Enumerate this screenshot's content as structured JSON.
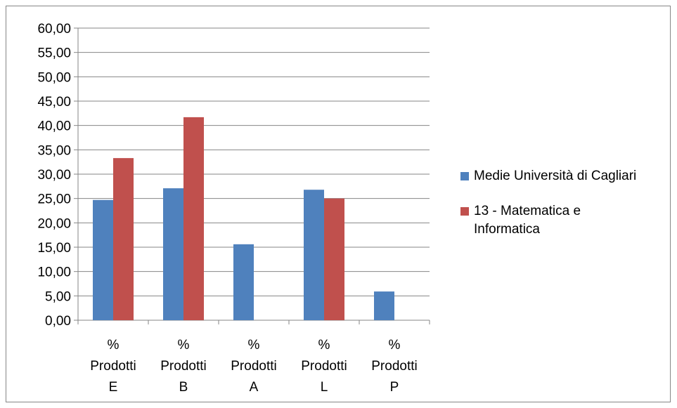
{
  "chart_data": {
    "type": "bar",
    "title": "",
    "xlabel": "",
    "ylabel": "",
    "ylim": [
      0,
      60
    ],
    "ytick_step": 5,
    "ytick_labels": [
      "0,00",
      "5,00",
      "10,00",
      "15,00",
      "20,00",
      "25,00",
      "30,00",
      "35,00",
      "40,00",
      "45,00",
      "50,00",
      "55,00",
      "60,00"
    ],
    "categories": [
      [
        "%",
        "Prodotti",
        "E"
      ],
      [
        "%",
        "Prodotti",
        "B"
      ],
      [
        "%",
        "Prodotti",
        "A"
      ],
      [
        "%",
        "Prodotti",
        "L"
      ],
      [
        "%",
        "Prodotti",
        "P"
      ]
    ],
    "series": [
      {
        "name": "Medie Università di Cagliari",
        "color": "#4f81bd",
        "values": [
          24.7,
          27.1,
          15.6,
          26.8,
          5.9
        ]
      },
      {
        "name": "13 - Matematica e Informatica",
        "color": "#c0504d",
        "values": [
          33.3,
          41.7,
          0,
          25.0,
          0
        ]
      }
    ],
    "grid": true,
    "legend_position": "right"
  },
  "legend": {
    "items": [
      {
        "label": "Medie Università di Cagliari",
        "color": "#4f81bd"
      },
      {
        "label_lines": [
          "13 - Matematica e",
          "Informatica"
        ],
        "color": "#c0504d"
      }
    ]
  }
}
